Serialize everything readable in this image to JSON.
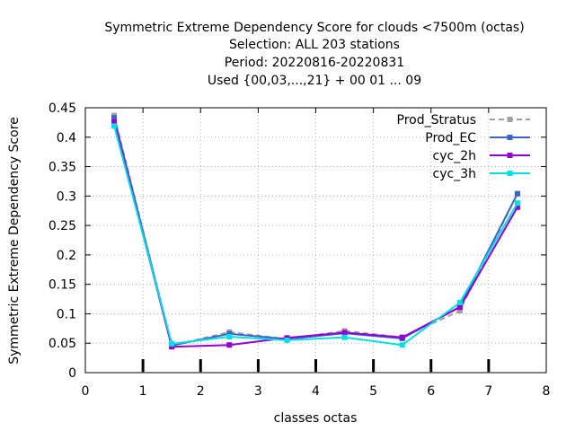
{
  "chart_data": {
    "type": "line",
    "title_lines": [
      "Symmetric Extreme Dependency Score  for clouds <7500m (octas)",
      "Selection: ALL    203 stations",
      "Period: 20220816-20220831",
      "Used {00,03,...,21} + 00 01 ... 09"
    ],
    "xlabel": "classes octas",
    "ylabel": "Symmetric Extreme Dependency Score",
    "xlim": [
      0,
      8
    ],
    "ylim": [
      0,
      0.45
    ],
    "xticks": [
      0,
      1,
      2,
      3,
      4,
      5,
      6,
      7,
      8
    ],
    "xtick_labels": [
      "0",
      "1",
      "2",
      "3",
      "4",
      "5",
      "6",
      "7",
      "8"
    ],
    "yticks": [
      0,
      0.05,
      0.1,
      0.15,
      0.2,
      0.25,
      0.3,
      0.35,
      0.4,
      0.45
    ],
    "ytick_labels": [
      "0",
      "0.05",
      "0.1",
      "0.15",
      "0.2",
      "0.25",
      "0.3",
      "0.35",
      "0.4",
      "0.45"
    ],
    "grid": true,
    "legend_position": "top-right",
    "x": [
      0.5,
      1.5,
      2.5,
      3.5,
      4.5,
      5.5,
      6.5,
      7.5
    ],
    "series": [
      {
        "name": "Prod_Stratus",
        "color": "#a0a0a0",
        "dashed": true,
        "values": [
          0.437,
          0.046,
          0.069,
          0.057,
          0.071,
          0.06,
          0.105,
          0.304
        ]
      },
      {
        "name": "Prod_EC",
        "color": "#3c64c8",
        "dashed": false,
        "values": [
          0.433,
          0.046,
          0.066,
          0.057,
          0.067,
          0.058,
          0.112,
          0.304
        ]
      },
      {
        "name": "cyc_2h",
        "color": "#9400d3",
        "dashed": false,
        "values": [
          0.426,
          0.044,
          0.047,
          0.059,
          0.068,
          0.06,
          0.111,
          0.281
        ]
      },
      {
        "name": "cyc_3h",
        "color": "#00e0e0",
        "dashed": false,
        "values": [
          0.419,
          0.049,
          0.061,
          0.055,
          0.06,
          0.047,
          0.119,
          0.288
        ]
      }
    ],
    "bottom_marks_x": [
      1,
      2,
      3,
      4,
      5,
      6,
      7
    ]
  }
}
